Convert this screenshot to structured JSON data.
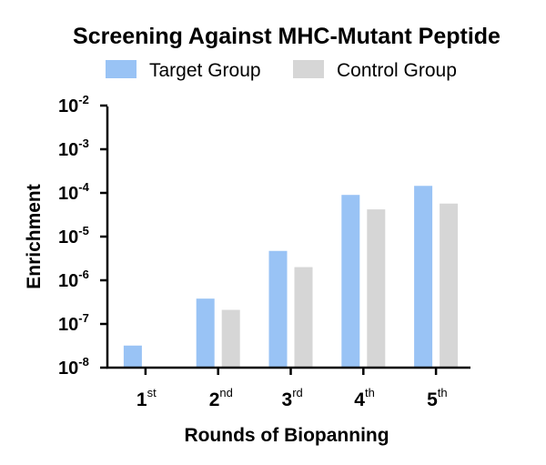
{
  "chart_data": {
    "type": "bar",
    "title": "Screening Against MHC-Mutant Peptide",
    "xlabel": "Rounds of Biopanning",
    "ylabel": "Enrichment",
    "yscale": "log",
    "ylim": [
      1e-08,
      0.01
    ],
    "yticks": [
      {
        "base": "10",
        "exp": "-8"
      },
      {
        "base": "10",
        "exp": "-7"
      },
      {
        "base": "10",
        "exp": "-6"
      },
      {
        "base": "10",
        "exp": "-5"
      },
      {
        "base": "10",
        "exp": "-4"
      },
      {
        "base": "10",
        "exp": "-3"
      },
      {
        "base": "10",
        "exp": "-2"
      }
    ],
    "categories": [
      {
        "num": "1",
        "suffix": "st"
      },
      {
        "num": "2",
        "suffix": "nd"
      },
      {
        "num": "3",
        "suffix": "rd"
      },
      {
        "num": "4",
        "suffix": "th"
      },
      {
        "num": "5",
        "suffix": "th"
      }
    ],
    "legend_position": "top",
    "grid": false,
    "series": [
      {
        "name": "Target Group",
        "color": "#99c3f5",
        "values": [
          3.2e-08,
          3.8e-07,
          4.7e-06,
          9e-05,
          0.000145
        ]
      },
      {
        "name": "Control Group",
        "color": "#d6d6d6",
        "values": [
          null,
          2.1e-07,
          2e-06,
          4.2e-05,
          5.7e-05
        ]
      }
    ]
  }
}
